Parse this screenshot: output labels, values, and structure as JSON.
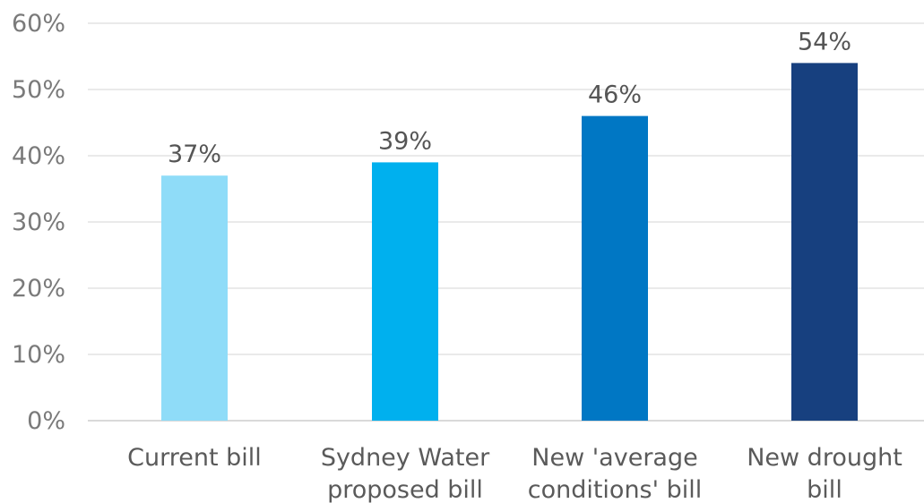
{
  "chart_data": {
    "type": "bar",
    "categories": [
      [
        "Current bill"
      ],
      [
        "Sydney Water",
        "proposed bill"
      ],
      [
        "New 'average",
        "conditions' bill"
      ],
      [
        "New drought",
        "bill"
      ]
    ],
    "values": [
      37,
      39,
      46,
      54
    ],
    "data_labels": [
      "37%",
      "39%",
      "46%",
      "54%"
    ],
    "bar_colors": [
      "#8fdcf8",
      "#00b0ee",
      "#0077c4",
      "#17407f"
    ],
    "ylim": [
      0,
      60
    ],
    "yticks": [
      0,
      10,
      20,
      30,
      40,
      50,
      60
    ],
    "ytick_labels": [
      "0%",
      "10%",
      "20%",
      "30%",
      "40%",
      "50%",
      "60%"
    ],
    "title": "",
    "xlabel": "",
    "ylabel": "",
    "grid": true,
    "legend": "none"
  }
}
